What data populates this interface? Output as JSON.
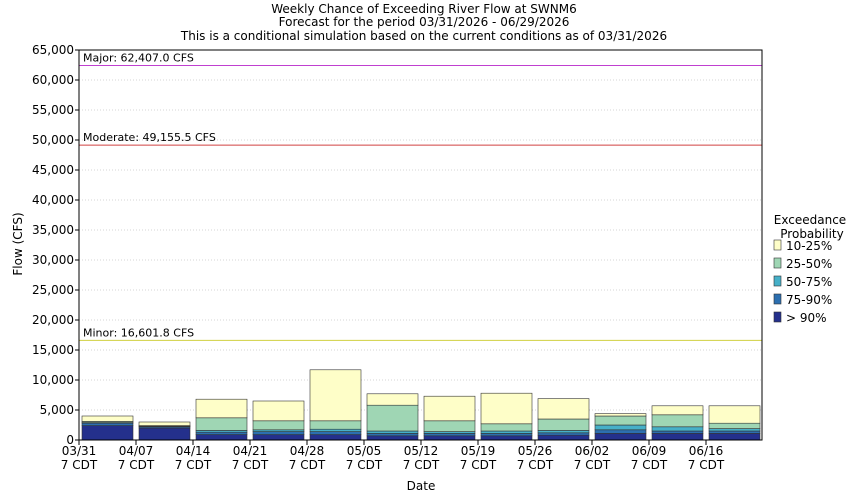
{
  "chart_data": {
    "type": "bar",
    "stacked": true,
    "title": [
      "Weekly Chance of Exceeding River Flow at SWNM6",
      "Forecast for the period 03/31/2026 - 06/29/2026",
      "This is a conditional simulation based on the current conditions as of 03/31/2026"
    ],
    "xlabel": "Date",
    "ylabel": "Flow (CFS)",
    "ylim": [
      0,
      65000
    ],
    "yticks": [
      0,
      5000,
      10000,
      15000,
      20000,
      25000,
      30000,
      35000,
      40000,
      45000,
      50000,
      55000,
      60000,
      65000
    ],
    "ytick_labels": [
      "0",
      "5,000",
      "10,000",
      "15,000",
      "20,000",
      "25,000",
      "30,000",
      "35,000",
      "40,000",
      "45,000",
      "50,000",
      "55,000",
      "60,000",
      "65,000"
    ],
    "x_tick_labels": [
      {
        "date": "03/31",
        "tz": "7 CDT"
      },
      {
        "date": "04/07",
        "tz": "7 CDT"
      },
      {
        "date": "04/14",
        "tz": "7 CDT"
      },
      {
        "date": "04/21",
        "tz": "7 CDT"
      },
      {
        "date": "04/28",
        "tz": "7 CDT"
      },
      {
        "date": "05/05",
        "tz": "7 CDT"
      },
      {
        "date": "05/12",
        "tz": "7 CDT"
      },
      {
        "date": "05/19",
        "tz": "7 CDT"
      },
      {
        "date": "05/26",
        "tz": "7 CDT"
      },
      {
        "date": "06/02",
        "tz": "7 CDT"
      },
      {
        "date": "06/09",
        "tz": "7 CDT"
      },
      {
        "date": "06/16",
        "tz": "7 CDT"
      }
    ],
    "legend_title": [
      "Exceedance",
      "Probability"
    ],
    "legend_position": "right",
    "series": [
      {
        "name": "> 90%",
        "color": "#24308c",
        "values": [
          2400,
          2000,
          900,
          900,
          900,
          700,
          700,
          700,
          800,
          1100,
          1100,
          1100
        ]
      },
      {
        "name": "75-90%",
        "color": "#2c6fb0",
        "values": [
          400,
          200,
          400,
          500,
          500,
          400,
          400,
          400,
          400,
          600,
          400,
          400
        ]
      },
      {
        "name": "50-75%",
        "color": "#46b0c8",
        "values": [
          100,
          100,
          300,
          300,
          400,
          400,
          300,
          400,
          400,
          800,
          700,
          400
        ]
      },
      {
        "name": "25-50%",
        "color": "#9fd6b4",
        "values": [
          200,
          100,
          2100,
          1500,
          1400,
          4300,
          1800,
          1200,
          1900,
          1500,
          2000,
          900
        ]
      },
      {
        "name": "10-25%",
        "color": "#fefec8",
        "values": [
          900,
          600,
          3100,
          3300,
          8500,
          1900,
          4100,
          5100,
          3400,
          400,
          1500,
          2900
        ]
      }
    ],
    "thresholds": [
      {
        "label": "Major: 62,407.0 CFS",
        "value": 62407.0,
        "color": "#c040d0"
      },
      {
        "label": "Moderate: 49,155.5 CFS",
        "value": 49155.5,
        "color": "#d04040"
      },
      {
        "label": "Minor: 16,601.8 CFS",
        "value": 16601.8,
        "color": "#d0d040"
      }
    ]
  }
}
